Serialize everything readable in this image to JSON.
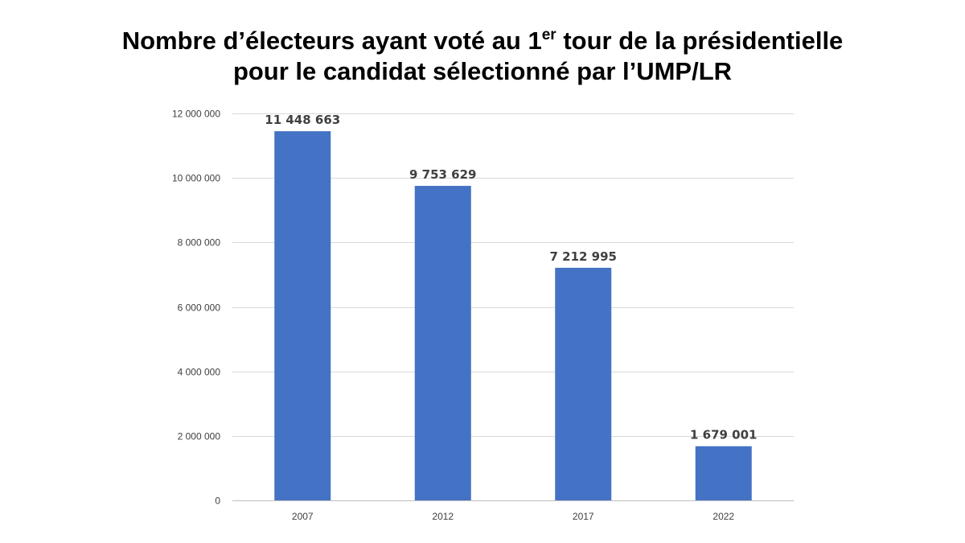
{
  "title": {
    "line1_before": "Nombre d’électeurs ayant voté au 1",
    "line1_sup": "er",
    "line1_after": " tour de la présidentielle",
    "line2": "pour le candidat sélectionné par l’UMP/LR"
  },
  "chart_data": {
    "type": "bar",
    "categories": [
      "2007",
      "2012",
      "2017",
      "2022"
    ],
    "values": [
      11448663,
      9753629,
      7212995,
      1679001
    ],
    "data_labels": [
      "11 448 663",
      "9 753 629",
      "7 212 995",
      "1 679 001"
    ],
    "ylim": [
      0,
      12000000
    ],
    "y_ticks": [
      0,
      2000000,
      4000000,
      6000000,
      8000000,
      10000000,
      12000000
    ],
    "y_tick_labels": [
      "0",
      "2 000 000",
      "4 000 000",
      "6 000 000",
      "8 000 000",
      "10 000 000",
      "12 000 000"
    ],
    "xlabel": "",
    "ylabel": "",
    "grid": true,
    "legend": "none",
    "bar_color": "#4472C4",
    "grid_color": "#D9D9D9",
    "axis_color": "#BFBFBF",
    "label_color": "#404040"
  }
}
